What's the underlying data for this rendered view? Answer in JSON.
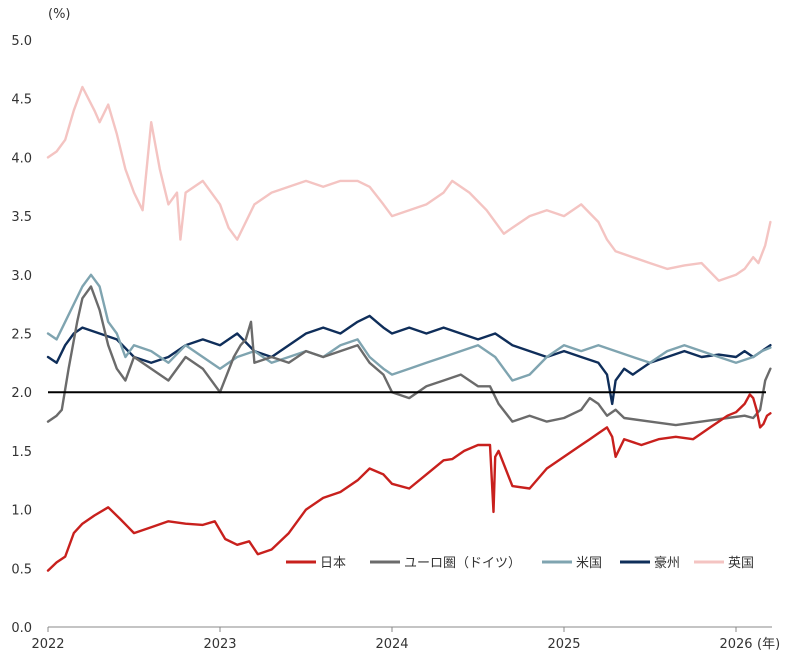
{
  "chart_data": {
    "type": "line",
    "y_unit": "(%)",
    "x_unit": "(年)",
    "ylim": [
      0.0,
      5.0
    ],
    "y_ticks": [
      "0.0",
      "0.5",
      "1.0",
      "1.5",
      "2.0",
      "2.5",
      "3.0",
      "3.5",
      "4.0",
      "4.5",
      "5.0"
    ],
    "x_ticks": [
      "2022",
      "2023",
      "2024",
      "2025",
      "2026"
    ],
    "xlim": [
      2022.0,
      2026.23
    ],
    "reference_line": 2.0,
    "grid": false,
    "legend_position": "bottom-right",
    "series": [
      {
        "name": "日本",
        "color": "#c8201d",
        "x": [
          2022.0,
          2022.05,
          2022.1,
          2022.15,
          2022.2,
          2022.27,
          2022.35,
          2022.42,
          2022.5,
          2022.6,
          2022.7,
          2022.8,
          2022.9,
          2022.97,
          2023.03,
          2023.1,
          2023.17,
          2023.22,
          2023.3,
          2023.4,
          2023.5,
          2023.6,
          2023.7,
          2023.8,
          2023.87,
          2023.95,
          2024.0,
          2024.1,
          2024.2,
          2024.3,
          2024.35,
          2024.42,
          2024.5,
          2024.57,
          2024.59,
          2024.6,
          2024.62,
          2024.7,
          2024.8,
          2024.9,
          2025.0,
          2025.1,
          2025.15,
          2025.2,
          2025.25,
          2025.28,
          2025.3,
          2025.35,
          2025.45,
          2025.55,
          2025.65,
          2025.75,
          2025.85,
          2025.95,
          2026.0,
          2026.05,
          2026.08,
          2026.1,
          2026.12,
          2026.14,
          2026.16,
          2026.18,
          2026.2
        ],
        "values": [
          0.48,
          0.55,
          0.6,
          0.8,
          0.88,
          0.95,
          1.02,
          0.92,
          0.8,
          0.85,
          0.9,
          0.88,
          0.87,
          0.9,
          0.75,
          0.7,
          0.73,
          0.62,
          0.66,
          0.8,
          1.0,
          1.1,
          1.15,
          1.25,
          1.35,
          1.3,
          1.22,
          1.18,
          1.3,
          1.42,
          1.43,
          1.5,
          1.55,
          1.55,
          0.98,
          1.45,
          1.5,
          1.2,
          1.18,
          1.35,
          1.45,
          1.55,
          1.6,
          1.65,
          1.7,
          1.62,
          1.45,
          1.6,
          1.55,
          1.6,
          1.62,
          1.6,
          1.7,
          1.8,
          1.83,
          1.9,
          1.98,
          1.95,
          1.85,
          1.7,
          1.73,
          1.8,
          1.82
        ]
      },
      {
        "name": "ユーロ圏（ドイツ）",
        "color": "#6b6b6b",
        "x": [
          2022.0,
          2022.05,
          2022.08,
          2022.12,
          2022.17,
          2022.2,
          2022.25,
          2022.3,
          2022.35,
          2022.4,
          2022.45,
          2022.5,
          2022.6,
          2022.7,
          2022.8,
          2022.9,
          2023.0,
          2023.08,
          2023.12,
          2023.15,
          2023.18,
          2023.2,
          2023.3,
          2023.4,
          2023.5,
          2023.6,
          2023.7,
          2023.8,
          2023.87,
          2023.95,
          2024.0,
          2024.1,
          2024.2,
          2024.3,
          2024.4,
          2024.5,
          2024.57,
          2024.62,
          2024.7,
          2024.8,
          2024.9,
          2025.0,
          2025.1,
          2025.15,
          2025.2,
          2025.25,
          2025.3,
          2025.35,
          2025.5,
          2025.65,
          2025.8,
          2025.95,
          2026.05,
          2026.1,
          2026.14,
          2026.17,
          2026.2
        ],
        "values": [
          1.75,
          1.8,
          1.85,
          2.2,
          2.6,
          2.8,
          2.9,
          2.7,
          2.4,
          2.2,
          2.1,
          2.3,
          2.2,
          2.1,
          2.3,
          2.2,
          2.0,
          2.3,
          2.4,
          2.45,
          2.6,
          2.25,
          2.3,
          2.25,
          2.35,
          2.3,
          2.35,
          2.4,
          2.25,
          2.15,
          2.0,
          1.95,
          2.05,
          2.1,
          2.15,
          2.05,
          2.05,
          1.9,
          1.75,
          1.8,
          1.75,
          1.78,
          1.85,
          1.95,
          1.9,
          1.8,
          1.85,
          1.78,
          1.75,
          1.72,
          1.75,
          1.78,
          1.8,
          1.78,
          1.85,
          2.1,
          2.2
        ]
      },
      {
        "name": "米国",
        "color": "#7fa4b0",
        "x": [
          2022.0,
          2022.05,
          2022.1,
          2022.15,
          2022.2,
          2022.25,
          2022.3,
          2022.35,
          2022.4,
          2022.45,
          2022.5,
          2022.6,
          2022.7,
          2022.8,
          2022.9,
          2023.0,
          2023.1,
          2023.2,
          2023.3,
          2023.4,
          2023.5,
          2023.6,
          2023.7,
          2023.8,
          2023.87,
          2023.95,
          2024.0,
          2024.1,
          2024.2,
          2024.3,
          2024.4,
          2024.5,
          2024.6,
          2024.7,
          2024.8,
          2024.9,
          2025.0,
          2025.1,
          2025.2,
          2025.3,
          2025.4,
          2025.5,
          2025.6,
          2025.7,
          2025.8,
          2025.9,
          2026.0,
          2026.1,
          2026.15,
          2026.2
        ],
        "values": [
          2.5,
          2.45,
          2.6,
          2.75,
          2.9,
          3.0,
          2.9,
          2.6,
          2.5,
          2.3,
          2.4,
          2.35,
          2.25,
          2.4,
          2.3,
          2.2,
          2.3,
          2.35,
          2.25,
          2.3,
          2.35,
          2.3,
          2.4,
          2.45,
          2.3,
          2.2,
          2.15,
          2.2,
          2.25,
          2.3,
          2.35,
          2.4,
          2.3,
          2.1,
          2.15,
          2.3,
          2.4,
          2.35,
          2.4,
          2.35,
          2.3,
          2.25,
          2.35,
          2.4,
          2.35,
          2.3,
          2.25,
          2.3,
          2.35,
          2.38
        ]
      },
      {
        "name": "豪州",
        "color": "#0f2e5a",
        "x": [
          2022.0,
          2022.05,
          2022.1,
          2022.15,
          2022.2,
          2022.3,
          2022.4,
          2022.5,
          2022.6,
          2022.7,
          2022.8,
          2022.9,
          2023.0,
          2023.1,
          2023.2,
          2023.3,
          2023.4,
          2023.5,
          2023.6,
          2023.7,
          2023.8,
          2023.87,
          2023.95,
          2024.0,
          2024.1,
          2024.2,
          2024.3,
          2024.4,
          2024.5,
          2024.6,
          2024.7,
          2024.8,
          2024.9,
          2025.0,
          2025.1,
          2025.2,
          2025.25,
          2025.28,
          2025.3,
          2025.35,
          2025.4,
          2025.5,
          2025.6,
          2025.7,
          2025.8,
          2025.9,
          2026.0,
          2026.05,
          2026.1,
          2026.15,
          2026.2
        ],
        "values": [
          2.3,
          2.25,
          2.4,
          2.5,
          2.55,
          2.5,
          2.45,
          2.3,
          2.25,
          2.3,
          2.4,
          2.45,
          2.4,
          2.5,
          2.35,
          2.3,
          2.4,
          2.5,
          2.55,
          2.5,
          2.6,
          2.65,
          2.55,
          2.5,
          2.55,
          2.5,
          2.55,
          2.5,
          2.45,
          2.5,
          2.4,
          2.35,
          2.3,
          2.35,
          2.3,
          2.25,
          2.15,
          1.9,
          2.1,
          2.2,
          2.15,
          2.25,
          2.3,
          2.35,
          2.3,
          2.32,
          2.3,
          2.35,
          2.3,
          2.35,
          2.4
        ]
      },
      {
        "name": "英国",
        "color": "#f4c4c2",
        "x": [
          2022.0,
          2022.05,
          2022.1,
          2022.15,
          2022.2,
          2022.27,
          2022.3,
          2022.35,
          2022.4,
          2022.45,
          2022.5,
          2022.55,
          2022.6,
          2022.65,
          2022.7,
          2022.75,
          2022.77,
          2022.8,
          2022.9,
          2023.0,
          2023.05,
          2023.1,
          2023.2,
          2023.3,
          2023.4,
          2023.5,
          2023.6,
          2023.7,
          2023.8,
          2023.87,
          2023.95,
          2024.0,
          2024.1,
          2024.2,
          2024.3,
          2024.35,
          2024.45,
          2024.55,
          2024.65,
          2024.7,
          2024.8,
          2024.9,
          2025.0,
          2025.05,
          2025.1,
          2025.2,
          2025.25,
          2025.3,
          2025.4,
          2025.5,
          2025.6,
          2025.7,
          2025.8,
          2025.9,
          2026.0,
          2026.05,
          2026.1,
          2026.13,
          2026.17,
          2026.2
        ],
        "values": [
          4.0,
          4.05,
          4.15,
          4.4,
          4.6,
          4.4,
          4.3,
          4.45,
          4.2,
          3.9,
          3.7,
          3.55,
          4.3,
          3.9,
          3.6,
          3.7,
          3.3,
          3.7,
          3.8,
          3.6,
          3.4,
          3.3,
          3.6,
          3.7,
          3.75,
          3.8,
          3.75,
          3.8,
          3.8,
          3.75,
          3.6,
          3.5,
          3.55,
          3.6,
          3.7,
          3.8,
          3.7,
          3.55,
          3.35,
          3.4,
          3.5,
          3.55,
          3.5,
          3.55,
          3.6,
          3.45,
          3.3,
          3.2,
          3.15,
          3.1,
          3.05,
          3.08,
          3.1,
          2.95,
          3.0,
          3.05,
          3.15,
          3.1,
          3.25,
          3.45
        ]
      }
    ]
  }
}
